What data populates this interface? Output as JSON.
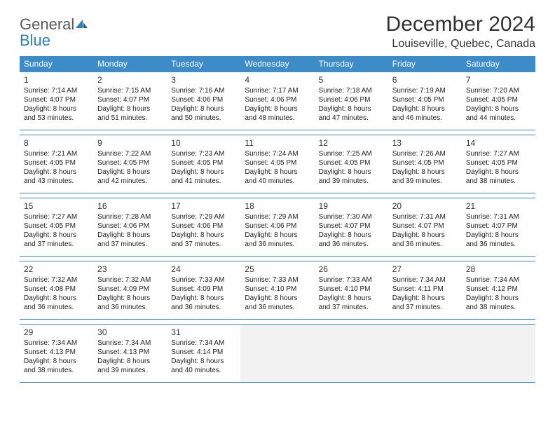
{
  "logo": {
    "text1": "General",
    "text2": "Blue"
  },
  "title": "December 2024",
  "location": "Louiseville, Quebec, Canada",
  "header_bg": "#3b8cc9",
  "dayNames": [
    "Sunday",
    "Monday",
    "Tuesday",
    "Wednesday",
    "Thursday",
    "Friday",
    "Saturday"
  ],
  "weeks": [
    [
      {
        "n": "1",
        "sr": "7:14 AM",
        "ss": "4:07 PM",
        "dl": "8 hours and 53 minutes."
      },
      {
        "n": "2",
        "sr": "7:15 AM",
        "ss": "4:07 PM",
        "dl": "8 hours and 51 minutes."
      },
      {
        "n": "3",
        "sr": "7:16 AM",
        "ss": "4:06 PM",
        "dl": "8 hours and 50 minutes."
      },
      {
        "n": "4",
        "sr": "7:17 AM",
        "ss": "4:06 PM",
        "dl": "8 hours and 48 minutes."
      },
      {
        "n": "5",
        "sr": "7:18 AM",
        "ss": "4:06 PM",
        "dl": "8 hours and 47 minutes."
      },
      {
        "n": "6",
        "sr": "7:19 AM",
        "ss": "4:05 PM",
        "dl": "8 hours and 46 minutes."
      },
      {
        "n": "7",
        "sr": "7:20 AM",
        "ss": "4:05 PM",
        "dl": "8 hours and 44 minutes."
      }
    ],
    [
      {
        "n": "8",
        "sr": "7:21 AM",
        "ss": "4:05 PM",
        "dl": "8 hours and 43 minutes."
      },
      {
        "n": "9",
        "sr": "7:22 AM",
        "ss": "4:05 PM",
        "dl": "8 hours and 42 minutes."
      },
      {
        "n": "10",
        "sr": "7:23 AM",
        "ss": "4:05 PM",
        "dl": "8 hours and 41 minutes."
      },
      {
        "n": "11",
        "sr": "7:24 AM",
        "ss": "4:05 PM",
        "dl": "8 hours and 40 minutes."
      },
      {
        "n": "12",
        "sr": "7:25 AM",
        "ss": "4:05 PM",
        "dl": "8 hours and 39 minutes."
      },
      {
        "n": "13",
        "sr": "7:26 AM",
        "ss": "4:05 PM",
        "dl": "8 hours and 39 minutes."
      },
      {
        "n": "14",
        "sr": "7:27 AM",
        "ss": "4:05 PM",
        "dl": "8 hours and 38 minutes."
      }
    ],
    [
      {
        "n": "15",
        "sr": "7:27 AM",
        "ss": "4:05 PM",
        "dl": "8 hours and 37 minutes."
      },
      {
        "n": "16",
        "sr": "7:28 AM",
        "ss": "4:06 PM",
        "dl": "8 hours and 37 minutes."
      },
      {
        "n": "17",
        "sr": "7:29 AM",
        "ss": "4:06 PM",
        "dl": "8 hours and 37 minutes."
      },
      {
        "n": "18",
        "sr": "7:29 AM",
        "ss": "4:06 PM",
        "dl": "8 hours and 36 minutes."
      },
      {
        "n": "19",
        "sr": "7:30 AM",
        "ss": "4:07 PM",
        "dl": "8 hours and 36 minutes."
      },
      {
        "n": "20",
        "sr": "7:31 AM",
        "ss": "4:07 PM",
        "dl": "8 hours and 36 minutes."
      },
      {
        "n": "21",
        "sr": "7:31 AM",
        "ss": "4:07 PM",
        "dl": "8 hours and 36 minutes."
      }
    ],
    [
      {
        "n": "22",
        "sr": "7:32 AM",
        "ss": "4:08 PM",
        "dl": "8 hours and 36 minutes."
      },
      {
        "n": "23",
        "sr": "7:32 AM",
        "ss": "4:09 PM",
        "dl": "8 hours and 36 minutes."
      },
      {
        "n": "24",
        "sr": "7:33 AM",
        "ss": "4:09 PM",
        "dl": "8 hours and 36 minutes."
      },
      {
        "n": "25",
        "sr": "7:33 AM",
        "ss": "4:10 PM",
        "dl": "8 hours and 36 minutes."
      },
      {
        "n": "26",
        "sr": "7:33 AM",
        "ss": "4:10 PM",
        "dl": "8 hours and 37 minutes."
      },
      {
        "n": "27",
        "sr": "7:34 AM",
        "ss": "4:11 PM",
        "dl": "8 hours and 37 minutes."
      },
      {
        "n": "28",
        "sr": "7:34 AM",
        "ss": "4:12 PM",
        "dl": "8 hours and 38 minutes."
      }
    ],
    [
      {
        "n": "29",
        "sr": "7:34 AM",
        "ss": "4:13 PM",
        "dl": "8 hours and 38 minutes."
      },
      {
        "n": "30",
        "sr": "7:34 AM",
        "ss": "4:13 PM",
        "dl": "8 hours and 39 minutes."
      },
      {
        "n": "31",
        "sr": "7:34 AM",
        "ss": "4:14 PM",
        "dl": "8 hours and 40 minutes."
      },
      null,
      null,
      null,
      null
    ]
  ],
  "labels": {
    "sunrise": "Sunrise: ",
    "sunset": "Sunset: ",
    "daylight": "Daylight: "
  }
}
